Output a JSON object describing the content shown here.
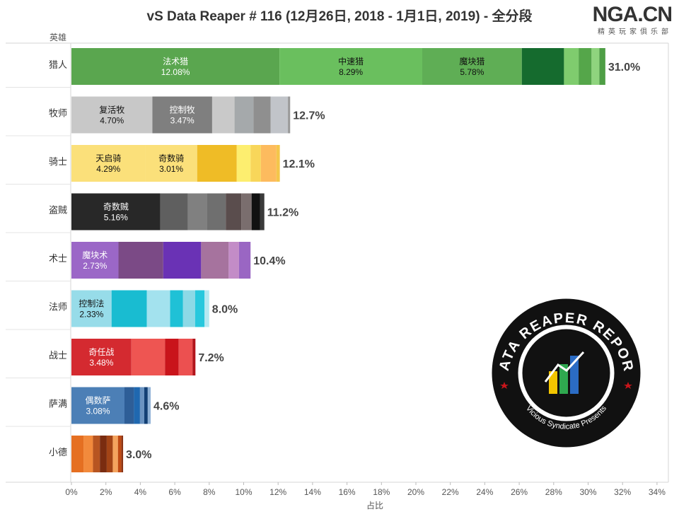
{
  "chart_data": {
    "type": "bar",
    "orientation": "horizontal",
    "stacked": true,
    "title": "vS Data Reaper # 116 (12月26日, 2018 - 1月1日, 2019) - 全分段",
    "ylabel": "英雄",
    "xlabel": "占比",
    "xlim": [
      0,
      34
    ],
    "x_ticks": [
      "0%",
      "2%",
      "4%",
      "6%",
      "8%",
      "10%",
      "12%",
      "14%",
      "16%",
      "18%",
      "20%",
      "22%",
      "24%",
      "26%",
      "28%",
      "30%",
      "32%",
      "34%"
    ],
    "categories": [
      "猎人",
      "牧师",
      "骑士",
      "盗贼",
      "术士",
      "法师",
      "战士",
      "萨满",
      "小德"
    ],
    "totals": [
      31.0,
      12.7,
      12.1,
      11.2,
      10.4,
      8.0,
      7.2,
      4.6,
      3.0
    ],
    "total_labels": [
      "31.0%",
      "12.7%",
      "12.1%",
      "11.2%",
      "10.4%",
      "8.0%",
      "7.2%",
      "4.6%",
      "3.0%"
    ],
    "segments": [
      [
        {
          "name": "法术猎",
          "value": 12.08,
          "label": "12.08%",
          "color": "#5aa64f",
          "text_color": "#ffffff"
        },
        {
          "name": "中速猎",
          "value": 8.29,
          "label": "8.29%",
          "color": "#6abf5e",
          "text_color": "#111111"
        },
        {
          "name": "魔块猎",
          "value": 5.78,
          "label": "5.78%",
          "color": "#5fae55",
          "text_color": "#111111"
        },
        {
          "value": 2.45,
          "color": "#156b2e"
        },
        {
          "value": 0.85,
          "color": "#7fcc6e"
        },
        {
          "value": 0.75,
          "color": "#55a64a"
        },
        {
          "value": 0.45,
          "color": "#8fd47e"
        },
        {
          "value": 0.35,
          "color": "#4e9e45"
        }
      ],
      [
        {
          "name": "复活牧",
          "value": 4.7,
          "label": "4.70%",
          "color": "#c8c8c8",
          "text_color": "#111111"
        },
        {
          "name": "控制牧",
          "value": 3.47,
          "label": "3.47%",
          "color": "#7f7f7f",
          "text_color": "#ffffff"
        },
        {
          "value": 1.3,
          "color": "#c9c9c9"
        },
        {
          "value": 1.1,
          "color": "#a5a9ab"
        },
        {
          "value": 1.0,
          "color": "#8f8f8f"
        },
        {
          "value": 1.0,
          "color": "#c1c4c9"
        },
        {
          "value": 0.13,
          "color": "#9a9a9a"
        }
      ],
      [
        {
          "name": "天启骑",
          "value": 4.29,
          "label": "4.29%",
          "color": "#fbe07a",
          "text_color": "#111111"
        },
        {
          "name": "奇数骑",
          "value": 3.01,
          "label": "3.01%",
          "color": "#fbe07a",
          "text_color": "#111111"
        },
        {
          "value": 2.3,
          "color": "#efbc26"
        },
        {
          "value": 0.8,
          "color": "#fdee6f"
        },
        {
          "value": 0.6,
          "color": "#f8d65a"
        },
        {
          "value": 0.9,
          "color": "#fdbb5e"
        },
        {
          "value": 0.2,
          "color": "#f4c64a"
        }
      ],
      [
        {
          "name": "奇数贼",
          "value": 5.16,
          "label": "5.16%",
          "color": "#282828",
          "text_color": "#ffffff"
        },
        {
          "value": 1.6,
          "color": "#5f5f5f"
        },
        {
          "value": 1.1,
          "color": "#808080"
        },
        {
          "value": 1.1,
          "color": "#6f6f6f"
        },
        {
          "value": 0.9,
          "color": "#5a4d4d"
        },
        {
          "value": 0.6,
          "color": "#7a6e6e"
        },
        {
          "value": 0.5,
          "color": "#111111"
        },
        {
          "value": 0.24,
          "color": "#3a3a3a"
        }
      ],
      [
        {
          "name": "魔块术",
          "value": 2.73,
          "label": "2.73%",
          "color": "#9b67c7",
          "text_color": "#ffffff"
        },
        {
          "value": 2.6,
          "color": "#7b4a86"
        },
        {
          "value": 2.2,
          "color": "#6a32b5"
        },
        {
          "value": 1.6,
          "color": "#a6739e"
        },
        {
          "value": 0.6,
          "color": "#c38cc7"
        },
        {
          "value": 0.67,
          "color": "#9a66c3"
        }
      ],
      [
        {
          "name": "控制法",
          "value": 2.33,
          "label": "2.33%",
          "color": "#97dce9",
          "text_color": "#111111"
        },
        {
          "value": 2.05,
          "color": "#19bcd1"
        },
        {
          "value": 1.35,
          "color": "#a3e2ee"
        },
        {
          "value": 0.75,
          "color": "#1fc1d6"
        },
        {
          "value": 0.7,
          "color": "#8cd9e6"
        },
        {
          "value": 0.55,
          "color": "#27c8dd"
        },
        {
          "value": 0.27,
          "color": "#b5e9f2"
        }
      ],
      [
        {
          "name": "奇任战",
          "value": 3.48,
          "label": "3.48%",
          "color": "#d42a30",
          "text_color": "#ffffff"
        },
        {
          "value": 1.95,
          "color": "#ee5552"
        },
        {
          "value": 0.8,
          "color": "#c9141b"
        },
        {
          "value": 0.8,
          "color": "#ec5050"
        },
        {
          "value": 0.17,
          "color": "#b2141b"
        }
      ],
      [
        {
          "name": "偶数萨",
          "value": 3.08,
          "label": "3.08%",
          "color": "#4c7fb6",
          "text_color": "#ffffff"
        },
        {
          "value": 0.55,
          "color": "#2e5e97"
        },
        {
          "value": 0.35,
          "color": "#1f68b0"
        },
        {
          "value": 0.25,
          "color": "#6a93c1"
        },
        {
          "value": 0.2,
          "color": "#123f74"
        },
        {
          "value": 0.17,
          "color": "#8fb1d6"
        }
      ],
      [
        {
          "value": 0.7,
          "color": "#e56f21"
        },
        {
          "value": 0.55,
          "color": "#f28a3c"
        },
        {
          "value": 0.4,
          "color": "#b75521"
        },
        {
          "value": 0.4,
          "color": "#7a2c10"
        },
        {
          "value": 0.35,
          "color": "#a34416"
        },
        {
          "value": 0.3,
          "color": "#f4a35e"
        },
        {
          "value": 0.2,
          "color": "#c04a14"
        },
        {
          "value": 0.1,
          "color": "#8a3314"
        }
      ]
    ],
    "grid": false,
    "legend": "none"
  },
  "logo": {
    "text": "NGA.CN",
    "subtitle": "精英玩家俱乐部"
  },
  "badge": {
    "title": "DATA REAPER REPORT",
    "subtitle": "Vicious Syndicate Presents"
  }
}
